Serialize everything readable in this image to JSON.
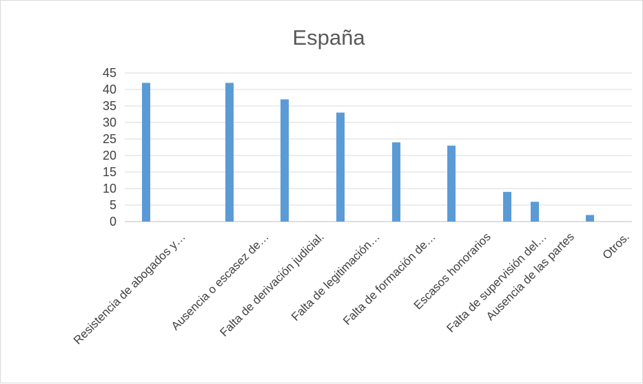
{
  "chart_data": {
    "type": "bar",
    "title": "España",
    "xlabel": "",
    "ylabel": "",
    "ylim": [
      0,
      45
    ],
    "yticks": [
      0,
      5,
      10,
      15,
      20,
      25,
      30,
      35,
      40,
      45
    ],
    "grid": true,
    "legend": "none",
    "bar_color": "#5b9bd5",
    "categories": [
      "Resistencia de abogados y…",
      "Ausencia o escasez de…",
      "Falta de derivación judicial.",
      "Falta de legitimación…",
      "Falta de formación de…",
      "Escasos honorarios",
      "Falta de supervisión del…",
      "Ausencia de las partes",
      "Otros."
    ],
    "values": [
      42,
      42,
      37,
      33,
      24,
      23,
      9,
      6,
      2
    ]
  }
}
